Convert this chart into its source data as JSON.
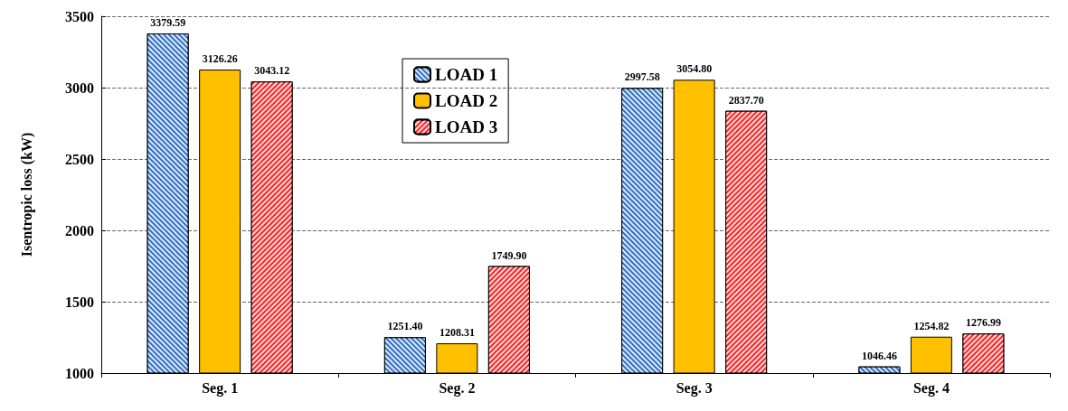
{
  "chart_data": {
    "type": "bar",
    "ylabel": "Isentropic loss (kW)",
    "categories": [
      "Seg. 1",
      "Seg. 2",
      "Seg. 3",
      "Seg. 4"
    ],
    "series": [
      {
        "name": "LOAD 1",
        "color": "#2f6fc8",
        "values": [
          3379.59,
          1251.4,
          2997.58,
          1046.46
        ],
        "value_labels": [
          "3379.59",
          "1251.40",
          "2997.58",
          "1046.46"
        ]
      },
      {
        "name": "LOAD 2",
        "color": "#ffc000",
        "values": [
          3126.26,
          1208.31,
          3054.8,
          1254.82
        ],
        "value_labels": [
          "3126.26",
          "1208.31",
          "3054.80",
          "1254.82"
        ]
      },
      {
        "name": "LOAD 3",
        "color": "#ff2020",
        "values": [
          3043.12,
          1749.9,
          2837.7,
          1276.99
        ],
        "value_labels": [
          "3043.12",
          "1749.90",
          "2837.70",
          "1276.99"
        ]
      }
    ],
    "ylim": [
      1000,
      3500
    ],
    "yticks": [
      1000,
      1500,
      2000,
      2500,
      3000,
      3500
    ],
    "grid": "y",
    "legend": "top"
  }
}
